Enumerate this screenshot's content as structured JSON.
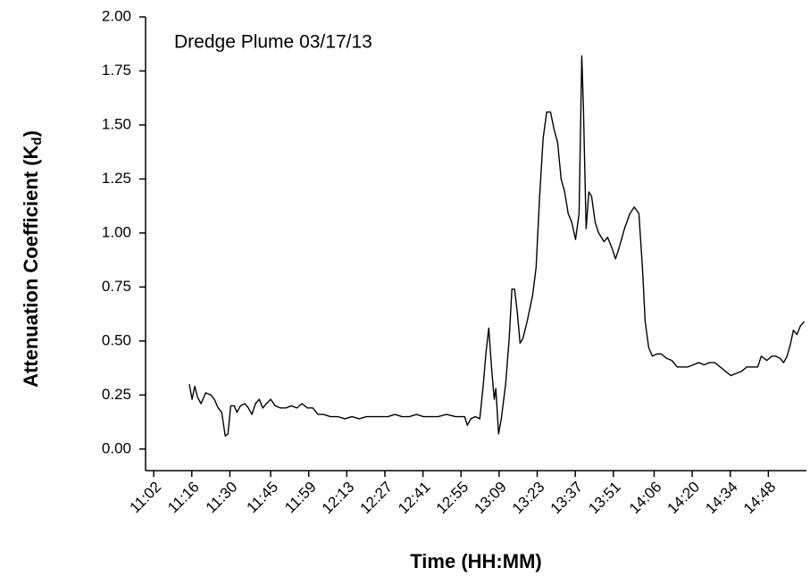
{
  "chart_data": {
    "type": "line",
    "annotation": "Dredge Plume 03/17/13",
    "x_label": "Time (HH:MM)",
    "y_label": [
      "Attenuation Coefficient (K",
      "d",
      ")"
    ],
    "xlim": [
      659,
      902
    ],
    "ylim": [
      -0.1,
      2.0
    ],
    "xticks": [
      {
        "value": 662,
        "label": "11:02"
      },
      {
        "value": 676,
        "label": "11:16"
      },
      {
        "value": 690,
        "label": "11:30"
      },
      {
        "value": 705,
        "label": "11:45"
      },
      {
        "value": 719,
        "label": "11:59"
      },
      {
        "value": 733,
        "label": "12:13"
      },
      {
        "value": 747,
        "label": "12:27"
      },
      {
        "value": 761,
        "label": "12:41"
      },
      {
        "value": 775,
        "label": "12:55"
      },
      {
        "value": 789,
        "label": "13:09"
      },
      {
        "value": 803,
        "label": "13:23"
      },
      {
        "value": 817,
        "label": "13:37"
      },
      {
        "value": 831,
        "label": "13:51"
      },
      {
        "value": 846,
        "label": "14:06"
      },
      {
        "value": 860,
        "label": "14:20"
      },
      {
        "value": 874,
        "label": "14:34"
      },
      {
        "value": 888,
        "label": "14:48"
      }
    ],
    "yticks": [
      {
        "value": 0,
        "label": "0.00"
      },
      {
        "value": 0.25,
        "label": "0.25"
      },
      {
        "value": 0.5,
        "label": "0.50"
      },
      {
        "value": 0.75,
        "label": "0.75"
      },
      {
        "value": 1,
        "label": "1.00"
      },
      {
        "value": 1.25,
        "label": "1.25"
      },
      {
        "value": 1.5,
        "label": "1.50"
      },
      {
        "value": 1.75,
        "label": "1.75"
      },
      {
        "value": 2,
        "label": "2.00"
      }
    ],
    "x": [
      675.1,
      676.1,
      677.1,
      678.1,
      679.4,
      681.1,
      683.0,
      684.3,
      685.7,
      687.0,
      688.3,
      689.3,
      690.3,
      691.6,
      692.6,
      693.9,
      695.5,
      696.8,
      698.1,
      699.4,
      700.8,
      702.1,
      703.4,
      705.0,
      706.7,
      708.6,
      710.6,
      712.6,
      714.6,
      716.5,
      718.5,
      720.5,
      722.4,
      724.4,
      727.0,
      729.7,
      732.3,
      734.9,
      737.6,
      740.2,
      742.8,
      745.4,
      748.1,
      750.7,
      753.3,
      756.0,
      758.6,
      761.2,
      763.8,
      766.5,
      769.7,
      773.0,
      776.3,
      777.3,
      778.6,
      780.3,
      781.9,
      783.2,
      784.2,
      785.2,
      786.2,
      787.2,
      787.8,
      788.8,
      789.8,
      791.4,
      792.7,
      793.7,
      794.7,
      795.7,
      796.7,
      797.7,
      799.3,
      801.3,
      802.6,
      803.9,
      805.2,
      806.5,
      807.9,
      809.2,
      810.5,
      811.8,
      813.1,
      814.4,
      815.7,
      817.1,
      818.4,
      819.4,
      820.0,
      821.0,
      822.0,
      823.0,
      824.3,
      825.6,
      827.6,
      828.9,
      830.5,
      831.8,
      833.1,
      835.1,
      837.1,
      838.7,
      840.4,
      841.7,
      842.7,
      844.0,
      845.3,
      847.0,
      848.6,
      850.6,
      852.5,
      854.5,
      856.5,
      858.4,
      860.4,
      862.4,
      864.4,
      866.3,
      868.3,
      870.3,
      872.2,
      874.2,
      876.2,
      878.2,
      880.1,
      882.1,
      884.1,
      885.4,
      887.4,
      889.3,
      890.6,
      892.3,
      893.6,
      894.9,
      896.2,
      897.2,
      898.5,
      899.8,
      901.2
    ],
    "series": [
      {
        "color": "#000000",
        "values": [
          0.3,
          0.23,
          0.29,
          0.24,
          0.21,
          0.26,
          0.25,
          0.23,
          0.19,
          0.17,
          0.06,
          0.07,
          0.2,
          0.2,
          0.17,
          0.2,
          0.21,
          0.19,
          0.16,
          0.21,
          0.23,
          0.19,
          0.21,
          0.23,
          0.2,
          0.19,
          0.19,
          0.2,
          0.19,
          0.21,
          0.19,
          0.19,
          0.16,
          0.16,
          0.15,
          0.15,
          0.14,
          0.15,
          0.14,
          0.15,
          0.15,
          0.15,
          0.15,
          0.16,
          0.15,
          0.15,
          0.16,
          0.15,
          0.15,
          0.15,
          0.16,
          0.15,
          0.15,
          0.11,
          0.14,
          0.15,
          0.14,
          0.3,
          0.45,
          0.56,
          0.38,
          0.23,
          0.28,
          0.07,
          0.14,
          0.3,
          0.51,
          0.74,
          0.74,
          0.63,
          0.49,
          0.51,
          0.59,
          0.71,
          0.84,
          1.17,
          1.44,
          1.56,
          1.56,
          1.48,
          1.42,
          1.25,
          1.19,
          1.09,
          1.05,
          0.97,
          1.09,
          1.82,
          1.58,
          1.02,
          1.19,
          1.17,
          1.05,
          1.0,
          0.96,
          0.98,
          0.93,
          0.88,
          0.93,
          1.02,
          1.09,
          1.12,
          1.09,
          0.84,
          0.59,
          0.47,
          0.43,
          0.44,
          0.44,
          0.42,
          0.41,
          0.38,
          0.38,
          0.38,
          0.39,
          0.4,
          0.39,
          0.4,
          0.4,
          0.38,
          0.36,
          0.34,
          0.35,
          0.36,
          0.38,
          0.38,
          0.38,
          0.43,
          0.41,
          0.43,
          0.43,
          0.42,
          0.4,
          0.43,
          0.49,
          0.55,
          0.53,
          0.57,
          0.59
        ]
      }
    ]
  }
}
